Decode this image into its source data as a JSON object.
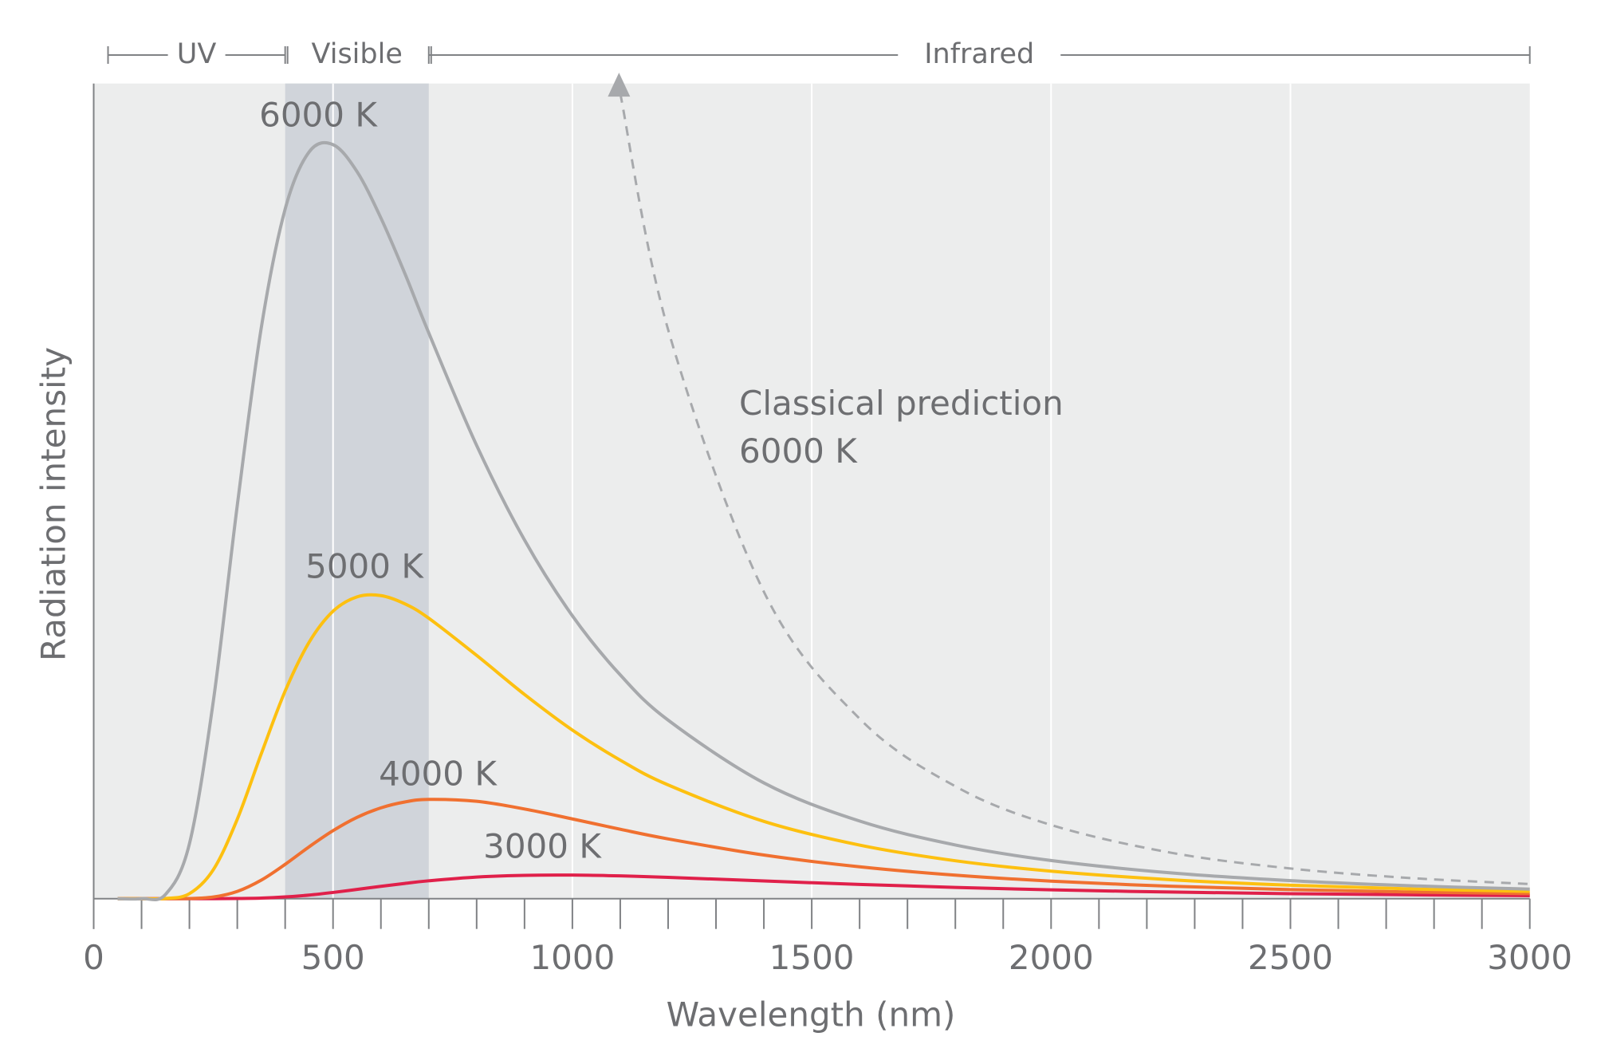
{
  "chart_data": {
    "type": "line",
    "xlabel": "Wavelength  (nm)",
    "ylabel": "Radiation  intensity",
    "x": [
      50,
      100,
      150,
      200,
      250,
      300,
      350,
      400,
      450,
      500,
      550,
      600,
      650,
      700,
      800,
      900,
      1000,
      1100,
      1200,
      1400,
      1600,
      1800,
      2000,
      2250,
      2500,
      2750,
      3000
    ],
    "series": [
      {
        "name": "6000 K",
        "color": "#a7a9ac",
        "values": [
          0,
          0,
          0.52,
          6.73,
          24.26,
          48.26,
          70.0,
          84.6,
          91.6,
          92.5,
          89.2,
          83.5,
          76.7,
          69.4,
          55.6,
          44.0,
          34.7,
          27.45,
          21.9,
          14.2,
          9.52,
          6.58,
          4.68,
          3.16,
          2.21,
          1.585,
          1.167
        ]
      },
      {
        "name": "5000 K",
        "color": "#fdc010",
        "values": [
          0,
          0,
          0.02,
          0.61,
          3.56,
          9.75,
          17.76,
          25.47,
          31.45,
          35.26,
          37.02,
          37.18,
          36.17,
          34.4,
          29.84,
          25.05,
          20.68,
          16.99,
          13.95,
          9.48,
          6.57,
          4.65,
          3.37,
          2.32,
          1.644,
          1.195,
          0.888
        ]
      },
      {
        "name": "4000 K",
        "color": "#f07030",
        "values": [
          0,
          0,
          0,
          0.02,
          0.2,
          0.89,
          2.27,
          4.21,
          6.36,
          8.34,
          9.97,
          11.14,
          11.86,
          12.18,
          11.94,
          11.0,
          9.78,
          8.51,
          7.33,
          5.35,
          3.91,
          2.88,
          2.15,
          1.52,
          1.105,
          0.818,
          0.616
        ]
      },
      {
        "name": "3000 K",
        "color": "#e0204a",
        "values": [
          0,
          0,
          0,
          0,
          0,
          0.02,
          0.07,
          0.21,
          0.44,
          0.76,
          1.13,
          1.51,
          1.87,
          2.19,
          2.65,
          2.86,
          2.89,
          2.79,
          2.61,
          2.17,
          1.74,
          1.38,
          1.08,
          0.81,
          0.61,
          0.47,
          0.36
        ]
      },
      {
        "name": "Classical prediction 6000 K",
        "color": "#a7a9ac",
        "dashed": true,
        "values": [
          null,
          null,
          null,
          null,
          null,
          null,
          null,
          null,
          null,
          null,
          null,
          null,
          null,
          null,
          null,
          null,
          null,
          98.8,
          69.8,
          37.65,
          22.08,
          13.78,
          9.04,
          5.64,
          3.7,
          2.53,
          1.79
        ]
      }
    ],
    "regions": [
      {
        "name": "UV",
        "range": [
          30,
          400
        ]
      },
      {
        "name": "Visible",
        "range": [
          400,
          700
        ],
        "shaded": true,
        "color": "#d0d4da"
      },
      {
        "name": "Infrared",
        "range": [
          700,
          3000
        ]
      }
    ],
    "xlim": [
      0,
      3000
    ],
    "ylim": [
      0,
      100
    ],
    "xticks": [
      0,
      500,
      1000,
      1500,
      2000,
      2500,
      3000
    ],
    "xminorticks": [
      100,
      200,
      300,
      400,
      600,
      700,
      800,
      900,
      1100,
      1200,
      1300,
      1400,
      1600,
      1700,
      1800,
      1900,
      2100,
      2200,
      2300,
      2400,
      2600,
      2700,
      2800,
      2900
    ],
    "grid": true
  }
}
